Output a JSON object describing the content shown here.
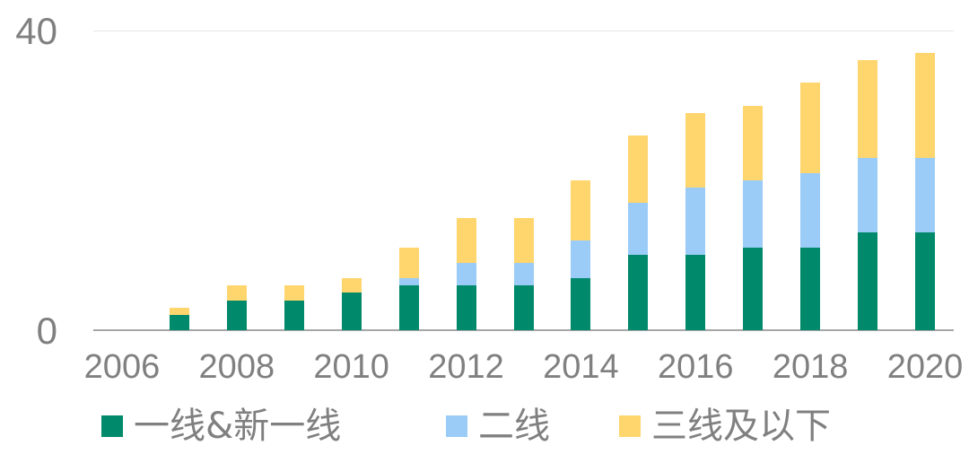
{
  "chart_data": {
    "type": "bar",
    "stacked": true,
    "title": "",
    "xlabel": "",
    "ylabel": "",
    "ylim": [
      0,
      40
    ],
    "yticks": [
      "0",
      "40"
    ],
    "grid": true,
    "legend_position": "bottom",
    "categories": [
      "2006",
      "2007",
      "2008",
      "2009",
      "2010",
      "2011",
      "2012",
      "2013",
      "2014",
      "2015",
      "2016",
      "2017",
      "2018",
      "2019",
      "2020"
    ],
    "xtick_labels": [
      "2006",
      "2008",
      "2010",
      "2012",
      "2014",
      "2016",
      "2018",
      "2020"
    ],
    "series": [
      {
        "name": "一线&新一线",
        "color": "#00896A",
        "values": [
          0,
          2,
          4,
          4,
          5,
          6,
          6,
          6,
          7,
          10,
          10,
          11,
          11,
          13,
          13
        ]
      },
      {
        "name": "二线",
        "color": "#9BCBF7",
        "values": [
          0,
          0,
          0,
          0,
          0,
          1,
          3,
          3,
          5,
          7,
          9,
          9,
          10,
          10,
          10
        ]
      },
      {
        "name": "三线及以下",
        "color": "#FFD56E",
        "values": [
          0,
          1,
          2,
          2,
          2,
          4,
          6,
          6,
          8,
          9,
          10,
          10,
          12,
          13,
          14
        ]
      }
    ]
  }
}
